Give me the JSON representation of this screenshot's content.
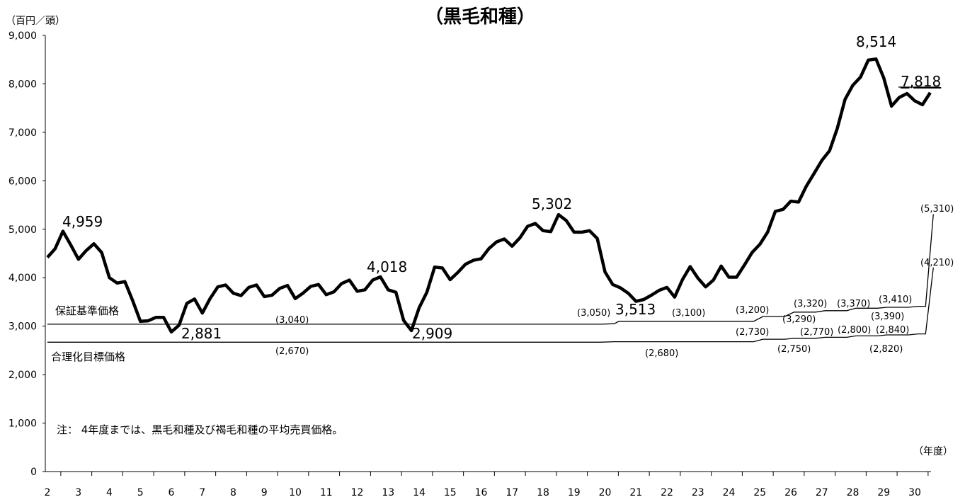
{
  "chart_data": {
    "type": "line",
    "title": "（黒毛和種）",
    "y_unit": "（百円／頭）",
    "x_unit": "（年度）",
    "ylim": [
      0,
      9000
    ],
    "yticks": [
      "0",
      "1,000",
      "2,000",
      "3,000",
      "4,000",
      "5,000",
      "6,000",
      "7,000",
      "8,000",
      "9,000"
    ],
    "xticks": [
      "2",
      "3",
      "4",
      "5",
      "6",
      "7",
      "8",
      "9",
      "10",
      "11",
      "12",
      "13",
      "14",
      "15",
      "16",
      "17",
      "18",
      "19",
      "20",
      "21",
      "22",
      "23",
      "24",
      "25",
      "26",
      "27",
      "28",
      "29",
      "30"
    ],
    "grid": false,
    "note": "注：  4年度までは、黒毛和種及び褐毛和種の平均売買価格。",
    "series": [
      {
        "name": "",
        "x": [
          2.0,
          2.25,
          2.5,
          2.75,
          3.0,
          3.25,
          3.5,
          3.75,
          4.0,
          4.25,
          4.5,
          4.75,
          5.0,
          5.25,
          5.5,
          5.75,
          6.0,
          6.25,
          6.5,
          6.75,
          7.0,
          7.25,
          7.5,
          7.75,
          8.0,
          8.25,
          8.5,
          8.75,
          9.0,
          9.25,
          9.5,
          9.75,
          10.0,
          10.25,
          10.5,
          10.75,
          11.0,
          11.25,
          11.5,
          11.75,
          12.0,
          12.25,
          12.5,
          12.75,
          13.0,
          13.25,
          13.5,
          13.75,
          14.0,
          14.25,
          14.5,
          14.75,
          15.0,
          15.25,
          15.5,
          15.75,
          16.0,
          16.25,
          16.5,
          16.75,
          17.0,
          17.25,
          17.5,
          17.75,
          18.0,
          18.25,
          18.5,
          18.75,
          19.0,
          19.25,
          19.5,
          19.75,
          20.0,
          20.25,
          20.5,
          20.75,
          21.0,
          21.25,
          21.5,
          21.75,
          22.0,
          22.25,
          22.5,
          22.75,
          23.0,
          23.25,
          23.5,
          23.75,
          24.0,
          24.25,
          24.5,
          24.75,
          25.0,
          25.25,
          25.5,
          25.75,
          26.0,
          26.25,
          26.5,
          26.75,
          27.0,
          27.25,
          27.5,
          27.75,
          28.0,
          28.25,
          28.5,
          28.75,
          29.0,
          29.25,
          29.5,
          29.75,
          30.0,
          30.25,
          30.5
        ],
        "values": [
          4420,
          4600,
          4959,
          4680,
          4380,
          4560,
          4700,
          4520,
          4000,
          3890,
          3920,
          3530,
          3100,
          3110,
          3180,
          3180,
          2881,
          3020,
          3470,
          3560,
          3270,
          3570,
          3810,
          3850,
          3680,
          3630,
          3800,
          3850,
          3610,
          3640,
          3780,
          3840,
          3570,
          3680,
          3820,
          3860,
          3650,
          3710,
          3880,
          3950,
          3720,
          3750,
          3950,
          4018,
          3750,
          3700,
          3120,
          2909,
          3380,
          3700,
          4220,
          4200,
          3960,
          4110,
          4280,
          4360,
          4390,
          4600,
          4740,
          4800,
          4650,
          4820,
          5060,
          5120,
          4970,
          4950,
          5302,
          5180,
          4940,
          4940,
          4970,
          4810,
          4120,
          3860,
          3790,
          3680,
          3513,
          3550,
          3640,
          3740,
          3800,
          3600,
          3960,
          4230,
          3990,
          3810,
          3950,
          4240,
          4010,
          4010,
          4260,
          4520,
          4690,
          4940,
          5370,
          5410,
          5580,
          5560,
          5890,
          6150,
          6420,
          6620,
          7080,
          7680,
          7970,
          8140,
          8490,
          8514,
          8120,
          7540,
          7720,
          7800,
          7650,
          7570,
          7818
        ]
      },
      {
        "name": "保証基準価格",
        "x": [
          2.0,
          19.85,
          20.3,
          20.45,
          24.8,
          25.1,
          25.8,
          26.1,
          26.8,
          27.1,
          27.8,
          28.1,
          28.8,
          29.1,
          29.8,
          30.1,
          30.35,
          30.6
        ],
        "values": [
          3040,
          3040,
          3050,
          3100,
          3100,
          3200,
          3200,
          3290,
          3290,
          3320,
          3320,
          3370,
          3370,
          3390,
          3390,
          3410,
          3410,
          5310
        ]
      },
      {
        "name": "合理化目標価格",
        "x": [
          2.0,
          19.85,
          20.3,
          24.8,
          25.1,
          25.8,
          26.1,
          26.8,
          27.1,
          27.8,
          28.1,
          28.8,
          29.1,
          29.8,
          30.1,
          30.35,
          30.6
        ],
        "values": [
          2670,
          2670,
          2680,
          2680,
          2730,
          2730,
          2750,
          2750,
          2770,
          2770,
          2800,
          2800,
          2820,
          2820,
          2840,
          2840,
          4210
        ]
      }
    ],
    "peak_labels": [
      "4,959",
      "2,881",
      "4,018",
      "2,909",
      "5,302",
      "3,513",
      "8,514",
      "7,818"
    ],
    "guarantee_labels": [
      "(3,040)",
      "(3,050)",
      "(3,100)",
      "(3,200)",
      "(3,290)",
      "(3,320)",
      "(3,370)",
      "(3,390)",
      "(3,410)",
      "(5,310)"
    ],
    "target_labels": [
      "(2,670)",
      "(2,680)",
      "(2,730)",
      "(2,750)",
      "(2,770)",
      "(2,800)",
      "(2,820)",
      "(2,840)",
      "(4,210)"
    ]
  }
}
